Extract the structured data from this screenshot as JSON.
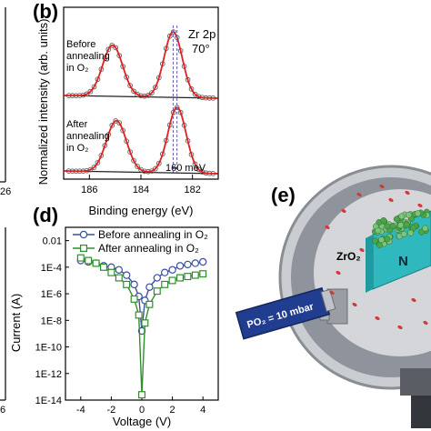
{
  "panels": {
    "b": {
      "label": "(b)",
      "annotation_line1": "Zr 2p",
      "annotation_line2": "70°",
      "before_label": [
        "Before",
        "annealing",
        "in O₂"
      ],
      "after_label": [
        "After",
        "annealing",
        "in O₂"
      ],
      "shift_label": "160 meV"
    },
    "d": {
      "label": "(d)"
    },
    "e": {
      "label": "(e)",
      "pressure_label": "PO₂ = 10 mbar",
      "oxide_label": "ZrO₂",
      "substrate_label_partial": "N"
    },
    "left_fragment": {
      "tick_top": "26",
      "tick_bottom": "6"
    }
  },
  "colors": {
    "fit": "#e02020",
    "data": "#606060",
    "before": "#3a4fa0",
    "after": "#2f8f2f",
    "background_line": "#222222",
    "tube": "#1f3a8a",
    "chamber": "#b9bcc2",
    "crystal": "#27b1b8"
  },
  "chart_data": [
    {
      "panel": "b",
      "type": "line",
      "xlabel": "Binding energy (eV)",
      "ylabel": "Normalized intensity (arb. units)",
      "xlim": [
        187,
        181
      ],
      "x_ticks": [
        186,
        184,
        182
      ],
      "x_reversed": true,
      "series": [
        {
          "curve": "before",
          "peaks_eV": [
            185.1,
            182.75
          ],
          "dashed_marker_eV": 182.75
        },
        {
          "curve": "after",
          "peaks_eV": [
            184.95,
            182.6
          ],
          "dashed_marker_eV": 182.6
        }
      ],
      "shift_meV": 160
    },
    {
      "panel": "d",
      "type": "line",
      "xlabel": "Voltage (V)",
      "ylabel": "Current (A)",
      "xlim": [
        -5,
        5
      ],
      "x_ticks": [
        -4,
        -2,
        0,
        2,
        4
      ],
      "y_log": true,
      "ylim_exp": [
        -14,
        -1
      ],
      "y_tick_labels": [
        "0.01",
        "1E-4",
        "1E-6",
        "1E-8",
        "1E-10",
        "1E-12",
        "1E-14"
      ],
      "y_tick_exps": [
        -2,
        -4,
        -6,
        -8,
        -10,
        -12,
        -14
      ],
      "series": [
        {
          "name": "Before annealing in O₂",
          "marker": "circle",
          "x": [
            -4,
            -3.5,
            -3,
            -2.5,
            -2,
            -1.5,
            -1,
            -0.5,
            -0.2,
            0,
            0.2,
            0.5,
            1,
            1.5,
            2,
            2.5,
            3,
            3.5,
            4
          ],
          "y_exp": [
            -3.5,
            -3.6,
            -3.7,
            -3.9,
            -4.0,
            -4.2,
            -4.6,
            -5.3,
            -6.2,
            -8.8,
            -6.5,
            -5.5,
            -4.8,
            -4.4,
            -4.2,
            -3.9,
            -3.8,
            -3.7,
            -3.6
          ]
        },
        {
          "name": "After annealing in O₂",
          "marker": "square",
          "x": [
            -4,
            -3.5,
            -3,
            -2.5,
            -2,
            -1.5,
            -1,
            -0.5,
            -0.2,
            0,
            0.2,
            0.5,
            1,
            1.5,
            2,
            2.5,
            3,
            3.5,
            4
          ],
          "y_exp": [
            -3.3,
            -3.5,
            -3.7,
            -4.0,
            -4.4,
            -4.8,
            -5.3,
            -6.4,
            -7.6,
            -13.6,
            -8.2,
            -6.8,
            -5.8,
            -5.3,
            -5.0,
            -4.8,
            -4.7,
            -4.6,
            -4.5
          ]
        }
      ]
    }
  ]
}
